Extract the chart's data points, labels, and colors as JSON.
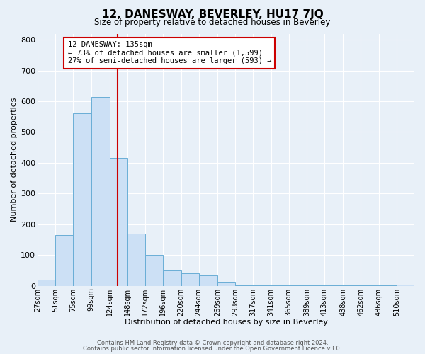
{
  "title": "12, DANESWAY, BEVERLEY, HU17 7JQ",
  "subtitle": "Size of property relative to detached houses in Beverley",
  "xlabel": "Distribution of detached houses by size in Beverley",
  "ylabel": "Number of detached properties",
  "bar_labels": [
    "27sqm",
    "51sqm",
    "75sqm",
    "99sqm",
    "124sqm",
    "148sqm",
    "172sqm",
    "196sqm",
    "220sqm",
    "244sqm",
    "269sqm",
    "293sqm",
    "317sqm",
    "341sqm",
    "365sqm",
    "389sqm",
    "413sqm",
    "438sqm",
    "462sqm",
    "486sqm",
    "510sqm"
  ],
  "bar_values": [
    20,
    165,
    560,
    615,
    415,
    170,
    100,
    50,
    40,
    33,
    10,
    2,
    2,
    2,
    2,
    2,
    2,
    2,
    2,
    2,
    5
  ],
  "bar_color": "#cce0f5",
  "bar_edge_color": "#6aaed6",
  "background_color": "#e8f0f8",
  "grid_color": "#ffffff",
  "vline_x": 135,
  "vline_color": "#cc0000",
  "annotation_title": "12 DANESWAY: 135sqm",
  "annotation_line1": "← 73% of detached houses are smaller (1,599)",
  "annotation_line2": "27% of semi-detached houses are larger (593) →",
  "annotation_box_color": "#cc0000",
  "ylim": [
    0,
    820
  ],
  "yticks": [
    0,
    100,
    200,
    300,
    400,
    500,
    600,
    700,
    800
  ],
  "footer_line1": "Contains HM Land Registry data © Crown copyright and database right 2024.",
  "footer_line2": "Contains public sector information licensed under the Open Government Licence v3.0.",
  "bin_edges": [
    27,
    51,
    75,
    99,
    124,
    148,
    172,
    196,
    220,
    244,
    269,
    293,
    317,
    341,
    365,
    389,
    413,
    438,
    462,
    486,
    510,
    534
  ]
}
